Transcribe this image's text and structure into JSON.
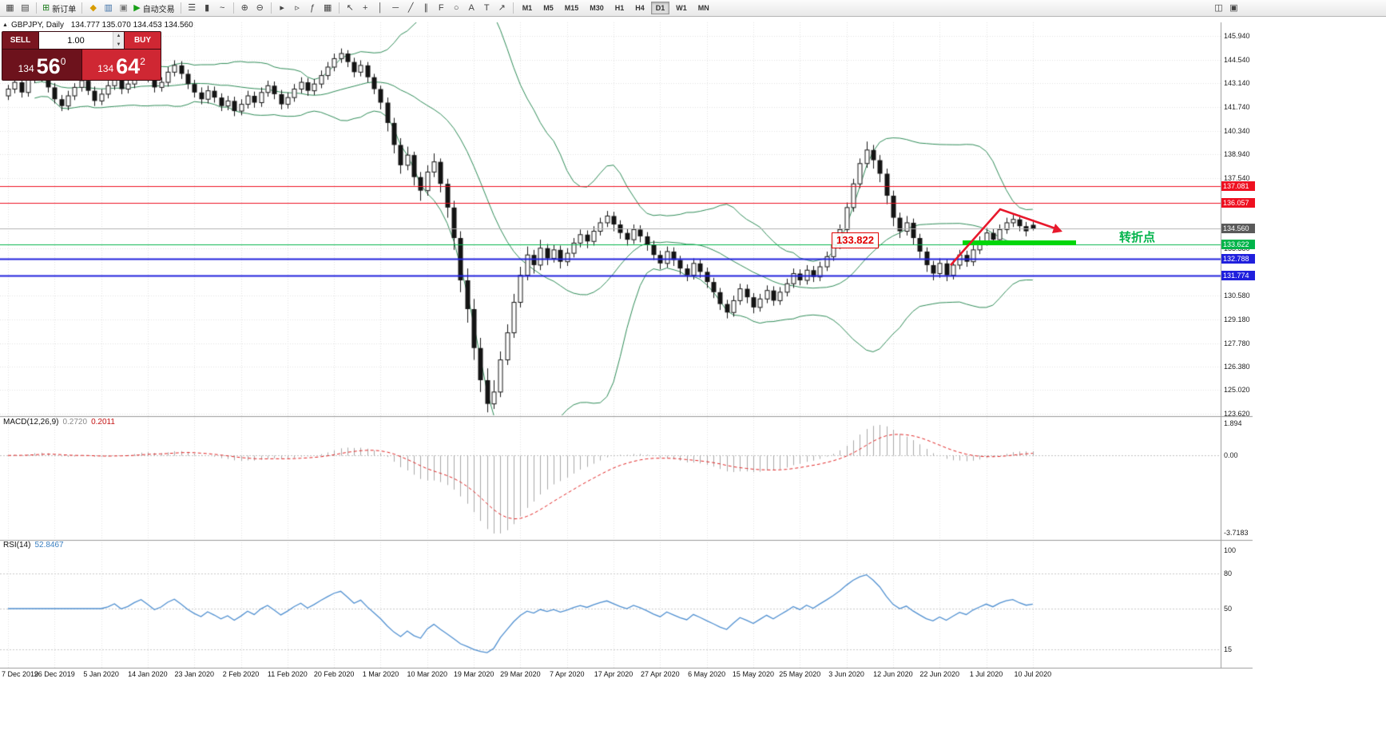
{
  "toolbar": {
    "sections": [
      {
        "items": [
          {
            "name": "new-chart-icon",
            "glyph": "▦"
          },
          {
            "name": "profiles-icon",
            "glyph": "▤"
          }
        ]
      },
      {
        "items": [
          {
            "name": "new-order-button",
            "glyph": "⊞",
            "color": "#1a7a1a",
            "label": "新订单"
          }
        ]
      },
      {
        "items": [
          {
            "name": "navigator-icon",
            "glyph": "◆",
            "color": "#d89c00"
          },
          {
            "name": "market-watch-icon",
            "glyph": "▥",
            "color": "#3b6ea5"
          },
          {
            "name": "terminal-icon",
            "glyph": "▣",
            "color": "#777777"
          },
          {
            "name": "auto-trading-button",
            "glyph": "▶",
            "color": "#18a018",
            "label": "自动交易"
          }
        ]
      },
      {
        "items": [
          {
            "name": "bar-chart-icon",
            "glyph": "☰"
          },
          {
            "name": "candlestick-chart-icon",
            "glyph": "▮"
          },
          {
            "name": "line-chart-icon",
            "glyph": "~"
          }
        ]
      },
      {
        "items": [
          {
            "name": "zoom-in-icon",
            "glyph": "⊕"
          },
          {
            "name": "zoom-out-icon",
            "glyph": "⊖"
          }
        ]
      },
      {
        "items": [
          {
            "name": "auto-scroll-icon",
            "glyph": "▸"
          },
          {
            "name": "chart-shift-icon",
            "glyph": "▹"
          },
          {
            "name": "indicators-icon",
            "glyph": "ƒ"
          },
          {
            "name": "grid-icon",
            "glyph": "▦"
          }
        ]
      },
      {
        "items": [
          {
            "name": "cursor-icon",
            "glyph": "↖"
          },
          {
            "name": "crosshair-icon",
            "glyph": "+"
          },
          {
            "name": "vertical-line-icon",
            "glyph": "│"
          },
          {
            "name": "horizontal-line-icon",
            "glyph": "─"
          },
          {
            "name": "trendline-icon",
            "glyph": "╱"
          },
          {
            "name": "channel-icon",
            "glyph": "∥"
          },
          {
            "name": "fibonacci-icon",
            "glyph": "F"
          },
          {
            "name": "shapes-icon",
            "glyph": "○"
          },
          {
            "name": "text-icon",
            "glyph": "A"
          },
          {
            "name": "label-icon",
            "glyph": "T"
          },
          {
            "name": "arrow-tool-icon",
            "glyph": "↗"
          }
        ]
      },
      {
        "timeframes": true,
        "active": "D1",
        "items": [
          "M1",
          "M5",
          "M15",
          "M30",
          "H1",
          "H4",
          "D1",
          "W1",
          "MN"
        ]
      },
      {
        "right": true,
        "items": [
          {
            "name": "window-tile-icon",
            "glyph": "◫"
          },
          {
            "name": "window-cascade-icon",
            "glyph": "▣"
          }
        ]
      }
    ],
    "overflow_icon": {
      "name": "toolbar-overflow-icon",
      "glyph": "▾"
    }
  },
  "symbol_header": {
    "symbol": "GBPJPY, Daily",
    "ohlc": "134.777 135.070 134.453 134.560"
  },
  "trade_panel": {
    "sell_label": "SELL",
    "buy_label": "BUY",
    "volume": "1.00",
    "sell_price_big": "134",
    "sell_price_pips": "56",
    "sell_price_sup": "0",
    "buy_price_big": "134",
    "buy_price_pips": "64",
    "buy_price_sup": "2"
  },
  "chart_data": {
    "type": "candlestick",
    "symbol": "GBPJPY",
    "timeframe": "Daily",
    "ohlc_display": {
      "open": "134.777",
      "high": "135.070",
      "low": "134.453",
      "close": "134.560"
    },
    "x_labels": [
      "7 Dec 2019",
      "26 Dec 2019",
      "5 Jan 2020",
      "14 Jan 2020",
      "23 Jan 2020",
      "2 Feb 2020",
      "11 Feb 2020",
      "20 Feb 2020",
      "1 Mar 2020",
      "10 Mar 2020",
      "19 Mar 2020",
      "29 Mar 2020",
      "7 Apr 2020",
      "17 Apr 2020",
      "27 Apr 2020",
      "6 May 2020",
      "15 May 2020",
      "25 May 2020",
      "3 Jun 2020",
      "12 Jun 2020",
      "22 Jun 2020",
      "1 Jul 2020",
      "10 Jul 2020"
    ],
    "label_every_n_bars": 7,
    "price_ticks": [
      "145.940",
      "144.540",
      "143.140",
      "141.740",
      "140.340",
      "138.940",
      "137.540",
      "133.380",
      "130.580",
      "129.180",
      "127.780",
      "126.380",
      "125.020",
      "123.620"
    ],
    "candles": [
      [
        142.4,
        143.05,
        142.15,
        142.8
      ],
      [
        142.8,
        143.45,
        142.55,
        143.2
      ],
      [
        143.2,
        143.5,
        142.3,
        142.6
      ],
      [
        142.6,
        143.9,
        142.35,
        143.4
      ],
      [
        143.4,
        144.1,
        143.15,
        143.9
      ],
      [
        143.9,
        144.15,
        143.25,
        143.5
      ],
      [
        143.5,
        143.75,
        142.6,
        142.9
      ],
      [
        142.9,
        143.15,
        141.95,
        142.2
      ],
      [
        142.2,
        142.45,
        141.5,
        141.8
      ],
      [
        141.8,
        142.7,
        141.55,
        142.4
      ],
      [
        142.4,
        143.15,
        142.15,
        142.9
      ],
      [
        142.9,
        143.6,
        142.65,
        143.3
      ],
      [
        143.3,
        143.55,
        142.45,
        142.7
      ],
      [
        142.7,
        142.95,
        141.8,
        142.1
      ],
      [
        142.1,
        142.8,
        141.85,
        142.5
      ],
      [
        142.5,
        143.3,
        142.25,
        143.0
      ],
      [
        143.0,
        143.7,
        142.75,
        143.4
      ],
      [
        143.4,
        143.65,
        142.5,
        142.8
      ],
      [
        142.8,
        143.4,
        142.55,
        143.1
      ],
      [
        143.1,
        143.9,
        142.85,
        143.6
      ],
      [
        143.6,
        144.3,
        143.35,
        144.0
      ],
      [
        144.0,
        144.25,
        143.2,
        143.5
      ],
      [
        143.5,
        143.75,
        142.6,
        142.9
      ],
      [
        142.9,
        143.5,
        142.65,
        143.2
      ],
      [
        143.2,
        144.1,
        142.95,
        143.8
      ],
      [
        143.8,
        144.5,
        143.55,
        144.2
      ],
      [
        144.2,
        144.45,
        143.4,
        143.7
      ],
      [
        143.7,
        143.95,
        142.8,
        143.1
      ],
      [
        143.1,
        143.35,
        142.3,
        142.6
      ],
      [
        142.6,
        142.9,
        141.9,
        142.2
      ],
      [
        142.2,
        143.0,
        141.95,
        142.7
      ],
      [
        142.7,
        142.95,
        142.0,
        142.3
      ],
      [
        142.3,
        142.55,
        141.5,
        141.8
      ],
      [
        141.8,
        142.4,
        141.55,
        142.1
      ],
      [
        142.1,
        142.35,
        141.2,
        141.5
      ],
      [
        141.5,
        142.2,
        141.25,
        141.9
      ],
      [
        141.9,
        142.7,
        141.65,
        142.4
      ],
      [
        142.4,
        142.65,
        141.7,
        142.0
      ],
      [
        142.0,
        142.9,
        141.75,
        142.6
      ],
      [
        142.6,
        143.3,
        142.35,
        143.0
      ],
      [
        143.0,
        143.25,
        142.2,
        142.5
      ],
      [
        142.5,
        142.75,
        141.6,
        141.9
      ],
      [
        141.9,
        142.6,
        141.65,
        142.3
      ],
      [
        142.3,
        143.1,
        142.05,
        142.8
      ],
      [
        142.8,
        143.5,
        142.55,
        143.2
      ],
      [
        143.2,
        143.45,
        142.4,
        142.7
      ],
      [
        142.7,
        143.4,
        142.45,
        143.1
      ],
      [
        143.1,
        143.9,
        142.85,
        143.6
      ],
      [
        143.6,
        144.4,
        143.35,
        144.1
      ],
      [
        144.1,
        144.9,
        143.85,
        144.6
      ],
      [
        144.6,
        145.2,
        144.35,
        144.9
      ],
      [
        144.9,
        145.1,
        144.1,
        144.4
      ],
      [
        144.4,
        144.65,
        143.5,
        143.8
      ],
      [
        143.8,
        144.5,
        143.55,
        144.2
      ],
      [
        144.2,
        144.4,
        143.2,
        143.5
      ],
      [
        143.5,
        143.7,
        142.5,
        142.8
      ],
      [
        142.8,
        143.0,
        141.6,
        142.0
      ],
      [
        142.0,
        142.3,
        140.3,
        140.8
      ],
      [
        140.8,
        141.1,
        139.0,
        139.5
      ],
      [
        139.5,
        139.9,
        137.8,
        138.3
      ],
      [
        138.3,
        139.4,
        138.0,
        138.9
      ],
      [
        138.9,
        139.1,
        137.1,
        137.6
      ],
      [
        137.6,
        137.9,
        136.2,
        136.8
      ],
      [
        136.8,
        138.3,
        136.5,
        137.9
      ],
      [
        137.9,
        139.0,
        137.6,
        138.5
      ],
      [
        138.5,
        138.7,
        136.7,
        137.2
      ],
      [
        137.2,
        137.5,
        135.2,
        135.8
      ],
      [
        135.8,
        136.2,
        133.3,
        134.0
      ],
      [
        134.0,
        134.4,
        130.8,
        131.5
      ],
      [
        131.5,
        132.2,
        129.0,
        129.8
      ],
      [
        129.8,
        130.4,
        126.8,
        127.5
      ],
      [
        127.5,
        128.1,
        124.9,
        125.6
      ],
      [
        125.6,
        126.3,
        123.7,
        124.2
      ],
      [
        124.2,
        125.6,
        123.9,
        124.9
      ],
      [
        124.9,
        127.3,
        124.6,
        126.8
      ],
      [
        126.8,
        128.9,
        126.5,
        128.4
      ],
      [
        128.4,
        130.7,
        128.1,
        130.2
      ],
      [
        130.2,
        132.3,
        129.9,
        131.8
      ],
      [
        131.8,
        133.5,
        131.5,
        133.0
      ],
      [
        133.0,
        133.3,
        131.9,
        132.4
      ],
      [
        132.4,
        133.9,
        132.1,
        133.4
      ],
      [
        133.4,
        133.65,
        132.4,
        132.8
      ],
      [
        132.8,
        133.6,
        132.55,
        133.3
      ],
      [
        133.3,
        133.55,
        132.2,
        132.6
      ],
      [
        132.6,
        133.4,
        132.35,
        133.1
      ],
      [
        133.1,
        134.0,
        132.85,
        133.7
      ],
      [
        133.7,
        134.5,
        133.45,
        134.2
      ],
      [
        134.2,
        134.45,
        133.4,
        133.8
      ],
      [
        133.8,
        134.7,
        133.55,
        134.4
      ],
      [
        134.4,
        135.2,
        134.15,
        134.9
      ],
      [
        134.9,
        135.6,
        134.65,
        135.3
      ],
      [
        135.3,
        135.55,
        134.4,
        134.8
      ],
      [
        134.8,
        135.05,
        133.95,
        134.3
      ],
      [
        134.3,
        134.55,
        133.55,
        133.9
      ],
      [
        133.9,
        134.8,
        133.65,
        134.5
      ],
      [
        134.5,
        134.75,
        133.75,
        134.1
      ],
      [
        134.1,
        134.35,
        133.25,
        133.6
      ],
      [
        133.6,
        133.85,
        132.7,
        133.0
      ],
      [
        133.0,
        133.25,
        132.15,
        132.5
      ],
      [
        132.5,
        133.5,
        132.25,
        133.2
      ],
      [
        133.2,
        133.45,
        132.35,
        132.7
      ],
      [
        132.7,
        132.95,
        131.85,
        132.2
      ],
      [
        132.2,
        132.45,
        131.45,
        131.8
      ],
      [
        131.8,
        132.8,
        131.55,
        132.5
      ],
      [
        132.5,
        132.75,
        131.65,
        132.0
      ],
      [
        132.0,
        132.25,
        131.05,
        131.4
      ],
      [
        131.4,
        131.65,
        130.45,
        130.8
      ],
      [
        130.8,
        131.05,
        129.75,
        130.1
      ],
      [
        130.1,
        130.35,
        129.25,
        129.6
      ],
      [
        129.6,
        130.6,
        129.35,
        130.3
      ],
      [
        130.3,
        131.3,
        130.05,
        131.0
      ],
      [
        131.0,
        131.25,
        130.15,
        130.5
      ],
      [
        130.5,
        130.75,
        129.55,
        129.9
      ],
      [
        129.9,
        130.7,
        129.65,
        130.4
      ],
      [
        130.4,
        131.2,
        130.15,
        130.9
      ],
      [
        130.9,
        131.15,
        130.0,
        130.3
      ],
      [
        130.3,
        131.1,
        130.05,
        130.8
      ],
      [
        130.8,
        131.6,
        130.55,
        131.3
      ],
      [
        131.3,
        132.2,
        131.05,
        131.9
      ],
      [
        131.9,
        132.15,
        131.2,
        131.5
      ],
      [
        131.5,
        132.4,
        131.25,
        132.1
      ],
      [
        132.1,
        132.35,
        131.4,
        131.7
      ],
      [
        131.7,
        132.6,
        131.45,
        132.3
      ],
      [
        132.3,
        133.2,
        132.05,
        132.9
      ],
      [
        132.9,
        133.9,
        132.65,
        133.6
      ],
      [
        133.6,
        134.8,
        133.35,
        134.5
      ],
      [
        134.5,
        136.1,
        134.25,
        135.8
      ],
      [
        135.8,
        137.5,
        135.55,
        137.2
      ],
      [
        137.2,
        138.7,
        136.95,
        138.4
      ],
      [
        138.4,
        139.7,
        138.15,
        139.2
      ],
      [
        139.2,
        139.5,
        138.1,
        138.6
      ],
      [
        138.6,
        138.9,
        137.3,
        137.8
      ],
      [
        137.8,
        138.1,
        136.0,
        136.5
      ],
      [
        136.5,
        136.8,
        134.7,
        135.2
      ],
      [
        135.2,
        135.5,
        134.0,
        134.4
      ],
      [
        134.4,
        135.3,
        134.15,
        134.9
      ],
      [
        134.9,
        135.15,
        133.6,
        134.0
      ],
      [
        134.0,
        134.25,
        132.8,
        133.2
      ],
      [
        133.2,
        133.45,
        132.0,
        132.4
      ],
      [
        132.4,
        132.65,
        131.5,
        131.9
      ],
      [
        131.9,
        132.8,
        131.65,
        132.5
      ],
      [
        132.5,
        132.75,
        131.45,
        131.8
      ],
      [
        131.8,
        132.7,
        131.55,
        132.4
      ],
      [
        132.4,
        133.3,
        132.15,
        133.0
      ],
      [
        133.0,
        133.25,
        132.3,
        132.6
      ],
      [
        132.6,
        133.6,
        132.35,
        133.3
      ],
      [
        133.3,
        134.1,
        133.05,
        133.8
      ],
      [
        133.8,
        134.6,
        133.55,
        134.3
      ],
      [
        134.3,
        134.55,
        133.6,
        133.9
      ],
      [
        133.9,
        134.8,
        133.65,
        134.5
      ],
      [
        134.5,
        135.2,
        134.25,
        134.9
      ],
      [
        134.9,
        135.4,
        134.65,
        135.1
      ],
      [
        135.1,
        135.35,
        134.4,
        134.7
      ],
      [
        134.7,
        134.95,
        134.1,
        134.4
      ],
      [
        134.78,
        135.07,
        134.45,
        134.56
      ]
    ],
    "overlays": {
      "bollinger": {
        "period": 20,
        "deviation": 2,
        "color": "#2e8b57"
      },
      "hlines": [
        {
          "price": 137.081,
          "color": "#ee1020",
          "width": 1,
          "label": "137.081"
        },
        {
          "price": 136.057,
          "color": "#ee1020",
          "width": 1,
          "label": "136.057"
        },
        {
          "price": 133.622,
          "color": "#00b44a",
          "width": 1,
          "label": "133.622"
        },
        {
          "price": 132.788,
          "color": "#2020dd",
          "width": 2,
          "label": "132.788"
        },
        {
          "price": 131.774,
          "color": "#2020dd",
          "width": 2,
          "label": "131.774"
        }
      ],
      "current_price": {
        "value": 134.56,
        "label": "134.560",
        "color": "#5a5a5a"
      }
    },
    "annotations": {
      "price_box": "133.822",
      "turning_point": "转折点",
      "arrow_color": "#e8192c",
      "highlight_color": "#00d60a"
    },
    "macd": {
      "title": "MACD(12,26,9)",
      "value": "0.2720",
      "signal_value": "0.2011",
      "ticks": [
        "1.894",
        "0.00",
        "-3.7183"
      ]
    },
    "rsi": {
      "title": "RSI(14)",
      "value": "52.8467",
      "ticks": [
        "100",
        "80",
        "50",
        "15"
      ]
    }
  }
}
